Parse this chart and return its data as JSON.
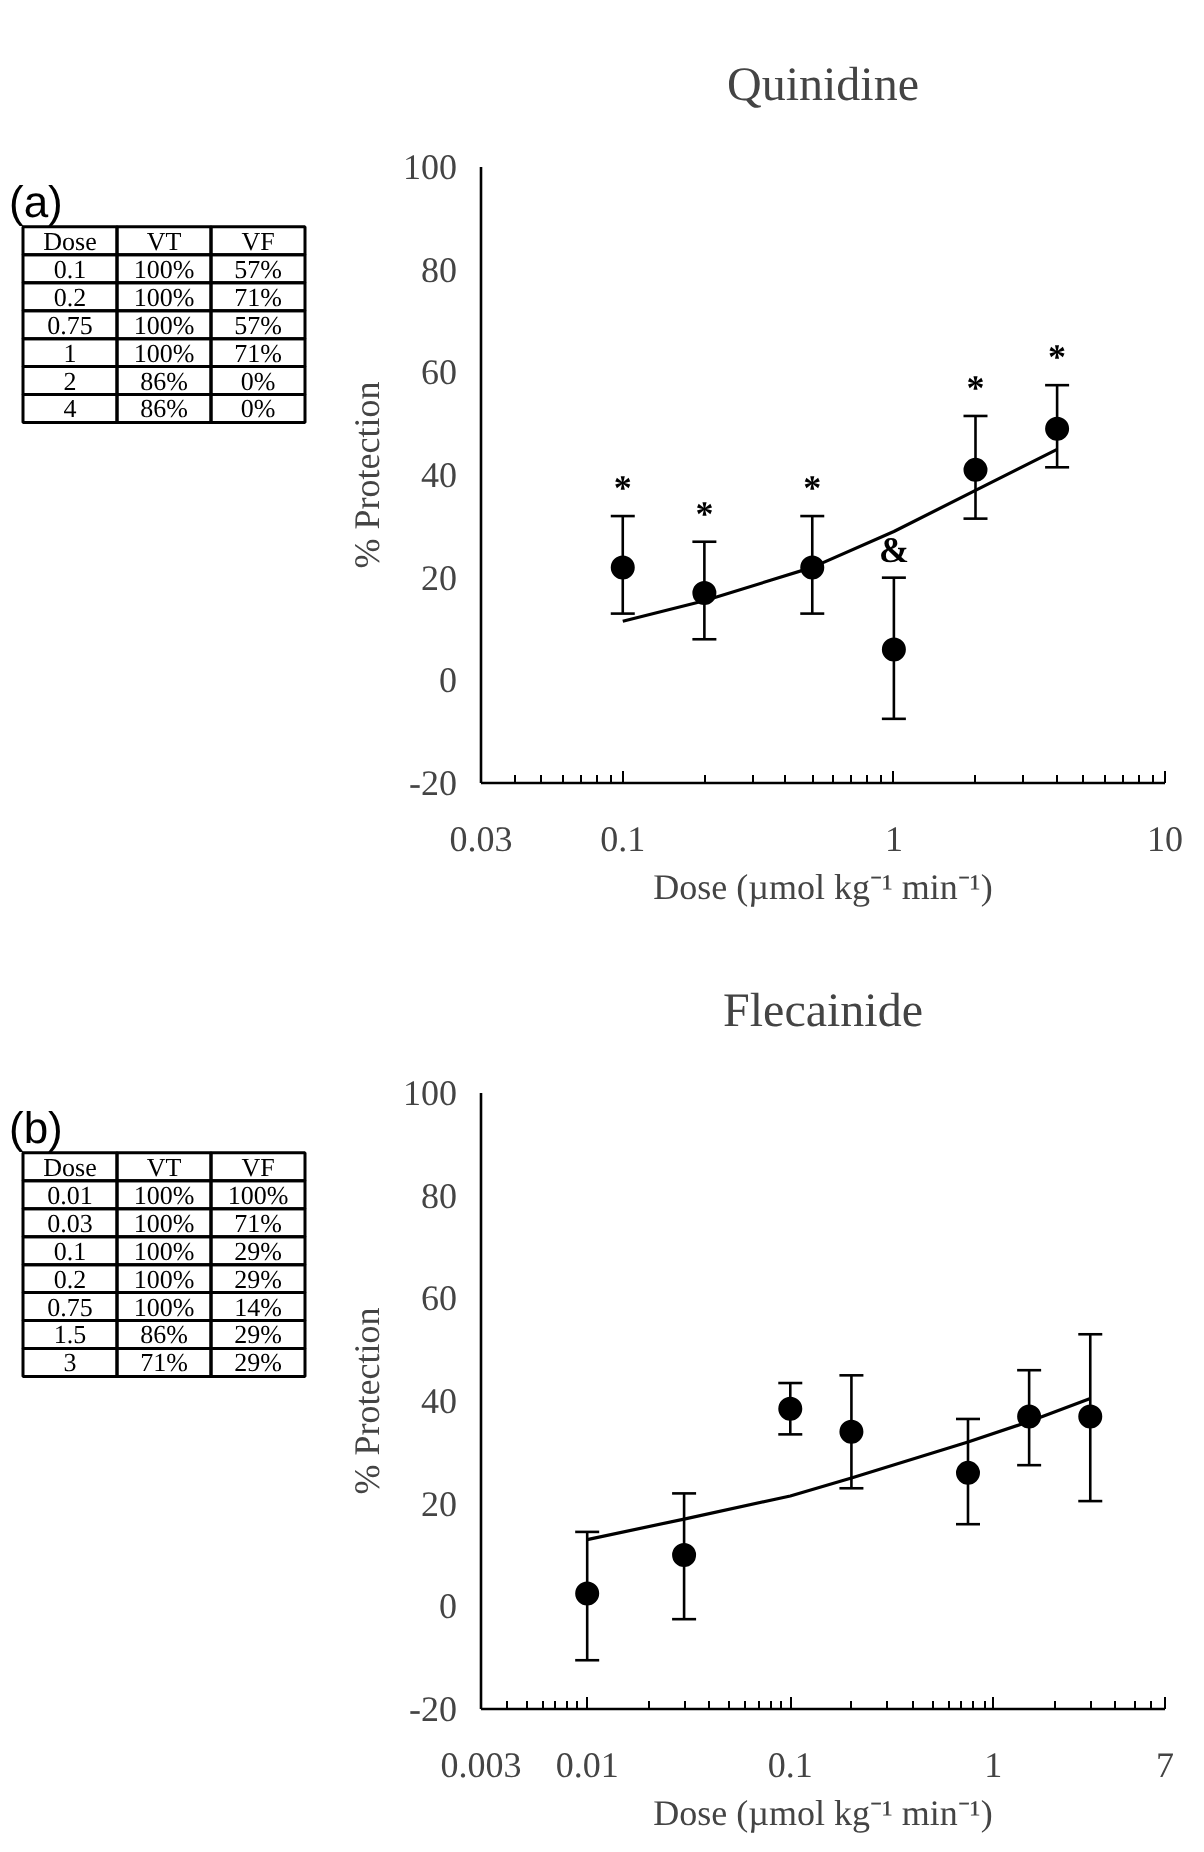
{
  "chart_data": [
    {
      "type": "scatter",
      "title": "Quinidine",
      "xlabel": "Dose (µmol kg⁻¹ min⁻¹)",
      "ylabel": "% Protection",
      "annotations": [
        "(a)",
        "Dose",
        "VT",
        "VF",
        "0.1",
        "100%",
        "57%",
        "0.2",
        "100%",
        "71%",
        "0.75",
        "100%",
        "57%",
        "1",
        "100%",
        "71%",
        "2",
        "86%",
        "0%",
        "4",
        "86%",
        "0%",
        {
          "text": "*",
          "x": 0.1,
          "y": 32
        },
        {
          "text": "*",
          "x": 0.2,
          "y": 27
        },
        {
          "text": "*",
          "x": 0.5,
          "y": 32
        },
        {
          "text": "*",
          "x": 2,
          "y": 51.5
        },
        {
          "text": "*",
          "x": 4,
          "y": 57.5
        },
        {
          "text": "&",
          "x": 1,
          "y": 20
        }
      ],
      "series": [
        {
          "marker": "circle",
          "color": "#000000",
          "x": [
            0.1,
            0.2,
            0.5,
            1,
            2,
            4
          ],
          "values": [
            22,
            17,
            22,
            6,
            41,
            49
          ],
          "errors": [
            [
              13,
              32
            ],
            [
              8,
              27
            ],
            [
              13,
              32
            ],
            [
              -7.5,
              20
            ],
            [
              31.5,
              51.5
            ],
            [
              41.5,
              57.5
            ]
          ]
        },
        {
          "type": "line",
          "marker": "none",
          "color": "#000000",
          "x": [
            0.1,
            0.2,
            0.5,
            1,
            2,
            4
          ],
          "values": [
            11.5,
            15.5,
            22,
            29,
            37,
            45
          ]
        }
      ],
      "xlim": [
        0.03,
        10
      ],
      "ylim": [
        -20,
        100
      ],
      "xticks": [
        0.03,
        0.1,
        1,
        10
      ],
      "yticks": [
        -20,
        0,
        20,
        40,
        60,
        80,
        100
      ],
      "log": "x",
      "grid": false
    },
    {
      "type": "scatter",
      "title": "Flecainide",
      "xlabel": "Dose (µmol kg⁻¹ min⁻¹)",
      "ylabel": "% Protection",
      "annotations": [
        "(b)",
        "Dose",
        "VT",
        "VF",
        "0.01",
        "100%",
        "100%",
        "0.03",
        "100%",
        "71%",
        "0.1",
        "100%",
        "29%",
        "0.2",
        "100%",
        "29%",
        "0.75",
        "100%",
        "14%",
        "1.5",
        "86%",
        "29%",
        "3",
        "71%",
        "29%"
      ],
      "series": [
        {
          "marker": "circle",
          "color": "#000000",
          "x": [
            0.01,
            0.03,
            0.1,
            0.2,
            0.75,
            1.5,
            3
          ],
          "values": [
            2.5,
            10,
            38.5,
            34,
            26,
            37,
            37
          ],
          "errors": [
            [
              -10.5,
              14.5
            ],
            [
              -2.5,
              22
            ],
            [
              33.5,
              43.5
            ],
            [
              23,
              45
            ],
            [
              16,
              36.5
            ],
            [
              27.5,
              46
            ],
            [
              20.5,
              53
            ]
          ]
        },
        {
          "type": "line",
          "marker": "none",
          "color": "#000000",
          "x": [
            0.01,
            0.03,
            0.1,
            0.2,
            0.75,
            1.5,
            3
          ],
          "values": [
            13,
            17,
            21.5,
            25,
            32,
            36,
            40.5
          ]
        }
      ],
      "xlim": [
        0.003,
        7
      ],
      "ylim": [
        -20,
        100
      ],
      "xticks": [
        0.003,
        0.01,
        0.1,
        1,
        7
      ],
      "yticks": [
        -20,
        0,
        20,
        40,
        60,
        80,
        100
      ],
      "log": "x",
      "grid": false
    }
  ]
}
